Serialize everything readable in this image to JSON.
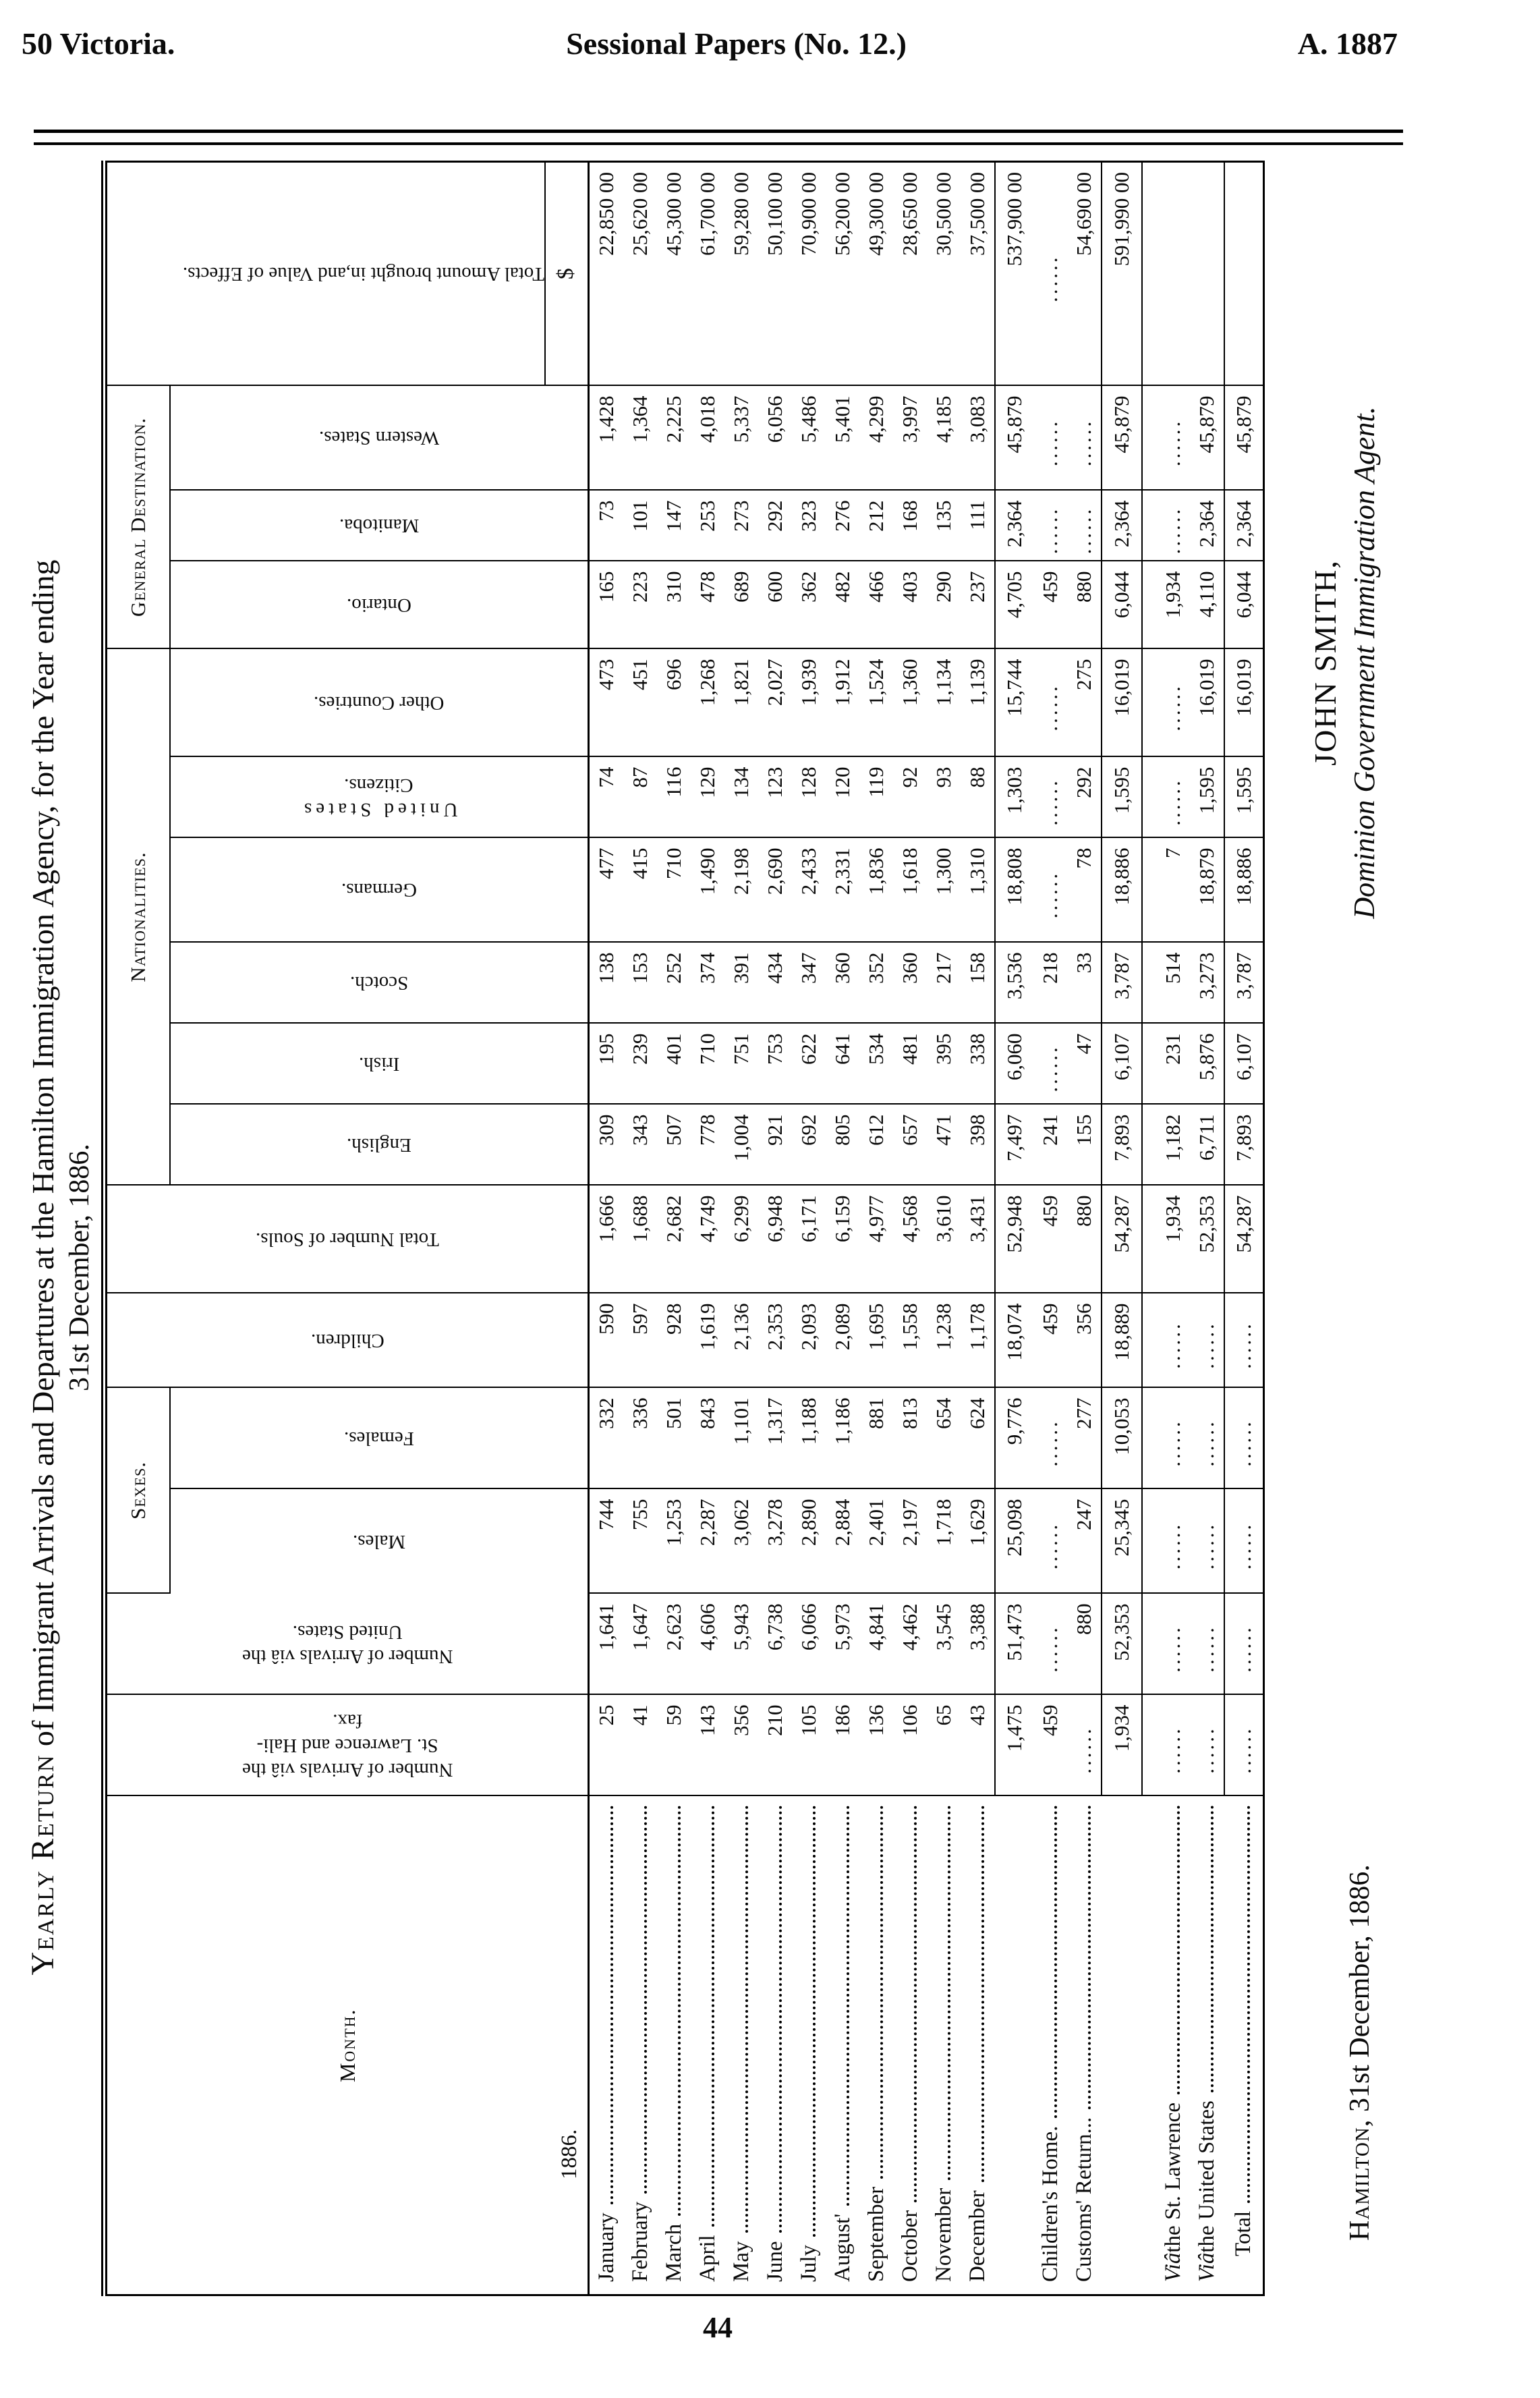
{
  "page_header": {
    "left": "50 Victoria.",
    "center": "Sessional Papers (No. 12.)",
    "right": "A. 1887"
  },
  "page_number": "44",
  "title": {
    "lead": "Yearly Return",
    "rest": " of Immigrant Arrivals and Departures at the Hamilton Immigration Agency, for the Year ending",
    "line2": "31st December, 1886."
  },
  "table": {
    "headers": {
      "month": "Month.",
      "year": "1886.",
      "stl": [
        "Number of Arrivals viâ the",
        "St. Lawrence and Hali-",
        "fax."
      ],
      "us": [
        "Number of Arrivals viâ the",
        "United States."
      ],
      "sexes": "Sexes.",
      "males": "Males.",
      "females": "Females.",
      "children": "Children.",
      "souls": "Total Number of Souls.",
      "nationalities": "Nationalities.",
      "english": "English.",
      "irish": "Irish.",
      "scotch": "Scotch.",
      "germans": "Germans.",
      "usc": [
        "United States",
        "Citizens."
      ],
      "other": "Other Countries.",
      "destination": "General Destination.",
      "ontario": "Ontario.",
      "manitoba": "Manitoba.",
      "western": "Western States.",
      "amount": [
        "Total Amount brought in,",
        "and Value of Effects."
      ],
      "currency": "$"
    },
    "rows": [
      {
        "label": "January",
        "type": "month",
        "values": [
          "25",
          "1,641",
          "744",
          "332",
          "590",
          "1,666",
          "309",
          "195",
          "138",
          "477",
          "74",
          "473",
          "165",
          "73",
          "1,428",
          "22,850 00"
        ]
      },
      {
        "label": "February",
        "type": "month",
        "values": [
          "41",
          "1,647",
          "755",
          "336",
          "597",
          "1,688",
          "343",
          "239",
          "153",
          "415",
          "87",
          "451",
          "223",
          "101",
          "1,364",
          "25,620 00"
        ]
      },
      {
        "label": "March",
        "type": "month",
        "values": [
          "59",
          "2,623",
          "1,253",
          "501",
          "928",
          "2,682",
          "507",
          "401",
          "252",
          "710",
          "116",
          "696",
          "310",
          "147",
          "2,225",
          "45,300 00"
        ]
      },
      {
        "label": "April",
        "type": "month",
        "values": [
          "143",
          "4,606",
          "2,287",
          "843",
          "1,619",
          "4,749",
          "778",
          "710",
          "374",
          "1,490",
          "129",
          "1,268",
          "478",
          "253",
          "4,018",
          "61,700 00"
        ]
      },
      {
        "label": "May",
        "type": "month",
        "values": [
          "356",
          "5,943",
          "3,062",
          "1,101",
          "2,136",
          "6,299",
          "1,004",
          "751",
          "391",
          "2,198",
          "134",
          "1,821",
          "689",
          "273",
          "5,337",
          "59,280 00"
        ]
      },
      {
        "label": "June",
        "type": "month",
        "values": [
          "210",
          "6,738",
          "3,278",
          "1,317",
          "2,353",
          "6,948",
          "921",
          "753",
          "434",
          "2,690",
          "123",
          "2,027",
          "600",
          "292",
          "6,056",
          "50,100 00"
        ]
      },
      {
        "label": "July",
        "type": "month",
        "values": [
          "105",
          "6,066",
          "2,890",
          "1,188",
          "2,093",
          "6,171",
          "692",
          "622",
          "347",
          "2,433",
          "128",
          "1,939",
          "362",
          "323",
          "5,486",
          "70,900 00"
        ]
      },
      {
        "label": "August'",
        "type": "month",
        "values": [
          "186",
          "5,973",
          "2,884",
          "1,186",
          "2,089",
          "6,159",
          "805",
          "641",
          "360",
          "2,331",
          "120",
          "1,912",
          "482",
          "276",
          "5,401",
          "56,200 00"
        ]
      },
      {
        "label": "September",
        "type": "month",
        "values": [
          "136",
          "4,841",
          "2,401",
          "881",
          "1,695",
          "4,977",
          "612",
          "534",
          "352",
          "1,836",
          "119",
          "1,524",
          "466",
          "212",
          "4,299",
          "49,300 00"
        ]
      },
      {
        "label": "October",
        "type": "month",
        "values": [
          "106",
          "4,462",
          "2,197",
          "813",
          "1,558",
          "4,568",
          "657",
          "481",
          "360",
          "1,618",
          "92",
          "1,360",
          "403",
          "168",
          "3,997",
          "28,650 00"
        ]
      },
      {
        "label": "November",
        "type": "month",
        "values": [
          "65",
          "3,545",
          "1,718",
          "654",
          "1,238",
          "3,610",
          "471",
          "395",
          "217",
          "1,300",
          "93",
          "1,134",
          "290",
          "135",
          "4,185",
          "30,500 00"
        ]
      },
      {
        "label": "December",
        "type": "month",
        "values": [
          "43",
          "3,388",
          "1,629",
          "624",
          "1,178",
          "3,431",
          "398",
          "338",
          "158",
          "1,310",
          "88",
          "1,139",
          "237",
          "111",
          "3,083",
          "37,500 00"
        ]
      },
      {
        "label": "",
        "type": "subtotal",
        "leader": false,
        "values": [
          "1,475",
          "51,473",
          "25,098",
          "9,776",
          "18,074",
          "52,948",
          "7,497",
          "6,060",
          "3,536",
          "18,808",
          "1,303",
          "15,744",
          "4,705",
          "2,364",
          "45,879",
          "537,900 00"
        ]
      },
      {
        "label": "Children's Home.",
        "type": "plain",
        "values": [
          "459",
          "",
          "",
          "",
          "459",
          "459",
          "241",
          "",
          "218",
          "",
          "",
          "",
          "459",
          "",
          "",
          ""
        ]
      },
      {
        "label": "Customs' Return...",
        "type": "plain",
        "values": [
          "",
          "880",
          "247",
          "277",
          "356",
          "880",
          "155",
          "47",
          "33",
          "78",
          "292",
          "275",
          "880",
          "",
          "",
          "54,690 00"
        ]
      },
      {
        "label": "",
        "type": "total",
        "leader": false,
        "gap_after": true,
        "values": [
          "1,934",
          "52,353",
          "25,345",
          "10,053",
          "18,889",
          "54,287",
          "7,893",
          "6,107",
          "3,787",
          "18,886",
          "1,595",
          "16,019",
          "6,044",
          "2,364",
          "45,879",
          "591,990 00"
        ]
      },
      {
        "label": " the St. Lawrence",
        "italic_lead": "Viâ",
        "type": "via",
        "values": [
          "",
          "",
          "",
          "",
          "",
          "1,934",
          "1,182",
          "231",
          "514",
          "7",
          "",
          "",
          "1,934",
          "",
          "",
          null
        ]
      },
      {
        "label": " the United States",
        "italic_lead": "Viâ",
        "type": "via",
        "values": [
          "",
          "",
          "",
          "",
          "",
          "52,353",
          "6,711",
          "5,876",
          "3,273",
          "18,879",
          "1,595",
          "16,019",
          "4,110",
          "2,364",
          "45,879",
          null
        ]
      },
      {
        "label": "Total",
        "type": "grandtotal",
        "values": [
          "",
          "",
          "",
          "",
          "",
          "54,287",
          "7,893",
          "6,107",
          "3,787",
          "18,886",
          "1,595",
          "16,019",
          "6,044",
          "2,364",
          "45,879",
          null
        ]
      }
    ]
  },
  "signature": {
    "place_date_lead": "Hamilton,",
    "place_date_rest": " 31st December, 1886.",
    "name": "JOHN SMITH,",
    "role": "Dominion Government Immigration Agent."
  }
}
